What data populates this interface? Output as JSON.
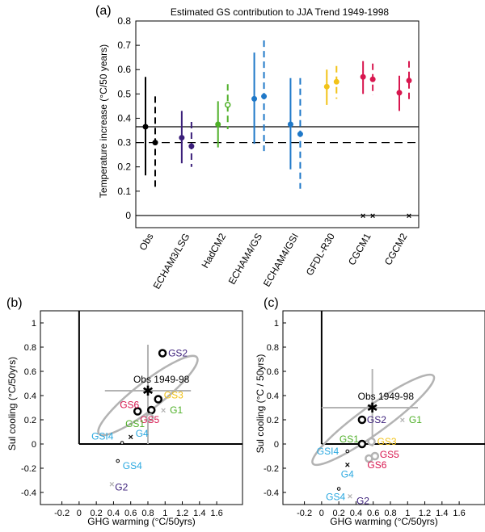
{
  "figure": {
    "panels": [
      "(a)",
      "(b)",
      "(c)"
    ]
  },
  "colors": {
    "obs": "#000000",
    "echam3": "#3b1f7a",
    "hadcm2": "#4fb028",
    "echam4gs": "#1f78c8",
    "echam4gsi": "#1f78c8",
    "gfdl": "#f2c318",
    "cgcm1": "#d8174f",
    "cgcm2": "#d8174f",
    "gs2": "#3b1f7a",
    "gs3": "#f2c318",
    "g1": "#4fb028",
    "gs1": "#4fb028",
    "gs5": "#d8174f",
    "gs6": "#d8174f",
    "gsi4": "#2aa8e0",
    "gs4": "#2aa8e0",
    "g4": "#2aa8e0",
    "g2": "#3b1f7a",
    "ellipse": "#b3b3b3"
  },
  "chart_data": [
    {
      "type": "errorbar",
      "title": "Estimated GS contribution to JJA Trend 1949-1998",
      "ylabel": "Temperature increase (°C/50 years)",
      "ylim": [
        -0.05,
        0.8
      ],
      "yticks": [
        "0",
        "0.1",
        "0.2",
        "0.3",
        "0.4",
        "0.5",
        "0.6",
        "0.7",
        "0.8"
      ],
      "categories": [
        "Obs",
        "ECHAM3/LSG",
        "HadCM2",
        "ECHAM4/GS",
        "ECHAM4/GSI",
        "GFDL-R30",
        "CGCM1",
        "CGCM2"
      ],
      "reference_lines": [
        {
          "value": 0.365,
          "style": "solid"
        },
        {
          "value": 0.3,
          "style": "dashed"
        },
        {
          "value": 0,
          "style": "solid"
        }
      ],
      "series": [
        {
          "category": "Obs",
          "estimate": "solid",
          "value": 0.365,
          "low": 0.165,
          "high": 0.57,
          "marker": "filled"
        },
        {
          "category": "Obs",
          "estimate": "dashed",
          "value": 0.3,
          "low": 0.105,
          "high": 0.49,
          "marker": "filled"
        },
        {
          "category": "ECHAM3/LSG",
          "estimate": "solid",
          "value": 0.32,
          "low": 0.215,
          "high": 0.43,
          "marker": "filled"
        },
        {
          "category": "ECHAM3/LSG",
          "estimate": "dashed",
          "value": 0.285,
          "low": 0.2,
          "high": 0.385,
          "marker": "filled"
        },
        {
          "category": "HadCM2",
          "estimate": "solid",
          "value": 0.375,
          "low": 0.28,
          "high": 0.47,
          "marker": "filled"
        },
        {
          "category": "HadCM2",
          "estimate": "dashed",
          "value": 0.455,
          "low": 0.355,
          "high": 0.54,
          "marker": "open"
        },
        {
          "category": "ECHAM4/GS",
          "estimate": "solid",
          "value": 0.48,
          "low": 0.295,
          "high": 0.67,
          "marker": "filled"
        },
        {
          "category": "ECHAM4/GS",
          "estimate": "dashed",
          "value": 0.49,
          "low": 0.265,
          "high": 0.72,
          "marker": "filled"
        },
        {
          "category": "ECHAM4/GSI",
          "estimate": "solid",
          "value": 0.375,
          "low": 0.19,
          "high": 0.565,
          "marker": "filled"
        },
        {
          "category": "ECHAM4/GSI",
          "estimate": "dashed",
          "value": 0.335,
          "low": 0.11,
          "high": 0.565,
          "marker": "filled"
        },
        {
          "category": "GFDL-R30",
          "estimate": "solid",
          "value": 0.53,
          "low": 0.455,
          "high": 0.6,
          "marker": "filled"
        },
        {
          "category": "GFDL-R30",
          "estimate": "dashed",
          "value": 0.55,
          "low": 0.48,
          "high": 0.615,
          "marker": "filled"
        },
        {
          "category": "CGCM1",
          "estimate": "solid",
          "value": 0.57,
          "low": 0.5,
          "high": 0.635,
          "marker": "filled",
          "zero_marker": true
        },
        {
          "category": "CGCM1",
          "estimate": "dashed",
          "value": 0.56,
          "low": 0.495,
          "high": 0.625,
          "marker": "filled",
          "zero_marker": true
        },
        {
          "category": "CGCM2",
          "estimate": "solid",
          "value": 0.505,
          "low": 0.43,
          "high": 0.575,
          "marker": "filled"
        },
        {
          "category": "CGCM2",
          "estimate": "dashed",
          "value": 0.555,
          "low": 0.475,
          "high": 0.635,
          "marker": "filled",
          "zero_marker": true
        }
      ]
    },
    {
      "type": "scatter",
      "xlabel": "GHG warming (°C/50yrs)",
      "ylabel": "Sul cooling (°C/50yrs)",
      "xlim": [
        -0.45,
        1.9
      ],
      "ylim": [
        -0.5,
        1.1
      ],
      "xticks": [
        "-0.2",
        "0",
        "0.2",
        "0.4",
        "0.6",
        "0.8",
        "1",
        "1.2",
        "1.4",
        "1.6"
      ],
      "yticks": [
        "-0.4",
        "-0.2",
        "0",
        "0.2",
        "0.4",
        "0.6",
        "0.8",
        "1"
      ],
      "observation": {
        "label": "Obs 1949-98",
        "x": 0.8,
        "y": 0.44,
        "x_range": [
          0.3,
          1.3
        ],
        "y_range": [
          0.0,
          0.82
        ]
      },
      "ellipse": {
        "center": [
          0.8,
          0.4
        ],
        "semi_major": 0.6,
        "semi_minor": 0.13,
        "angle_deg": 38
      },
      "points": [
        {
          "label": "GS2",
          "x": 0.97,
          "y": 0.75,
          "marker": "open-bold"
        },
        {
          "label": "GS3",
          "x": 0.92,
          "y": 0.37,
          "marker": "open-bold"
        },
        {
          "label": "GS6",
          "x": 0.68,
          "y": 0.27,
          "marker": "open-bold"
        },
        {
          "label": "GS5",
          "x": 0.84,
          "y": 0.28,
          "marker": "open-bold"
        },
        {
          "label": "G1",
          "x": 0.98,
          "y": 0.28,
          "marker": "cross"
        },
        {
          "label": "GS1",
          "x": 0.82,
          "y": 0.22,
          "marker": "open-light"
        },
        {
          "label": "GSI4",
          "x": 0.5,
          "y": 0.01,
          "marker": "small-open"
        },
        {
          "label": "G4",
          "x": 0.6,
          "y": 0.06,
          "marker": "cross"
        },
        {
          "label": "GS4",
          "x": 0.45,
          "y": -0.14,
          "marker": "small-open"
        },
        {
          "label": "G2",
          "x": 0.38,
          "y": -0.33,
          "marker": "cross"
        }
      ]
    },
    {
      "type": "scatter",
      "xlabel": "GHG warming (°C/50yrs)",
      "ylabel": "Sul cooling (°C / 50yrs)",
      "xlim": [
        -0.45,
        1.9
      ],
      "ylim": [
        -0.5,
        1.1
      ],
      "xticks": [
        "-0.2",
        "0",
        "0.2",
        "0.4",
        "0.6",
        "0.8",
        "1",
        "1.2",
        "1.4",
        "1.6"
      ],
      "yticks": [
        "-0.4",
        "-0.2",
        "0",
        "0.2",
        "0.4",
        "0.6",
        "0.8",
        "1"
      ],
      "observation": {
        "label": "Obs 1949-98",
        "x": 0.59,
        "y": 0.3,
        "x_range": [
          0.0,
          1.12
        ],
        "y_range": [
          -0.02,
          0.62
        ]
      },
      "ellipse": {
        "center": [
          0.6,
          0.2
        ],
        "semi_major": 0.72,
        "semi_minor": 0.13,
        "angle_deg": 36
      },
      "points": [
        {
          "label": "GS2",
          "x": 0.47,
          "y": 0.2,
          "marker": "open-bold"
        },
        {
          "label": "G1",
          "x": 0.94,
          "y": 0.2,
          "marker": "cross"
        },
        {
          "label": "GS1",
          "x": 0.47,
          "y": 0.0,
          "marker": "open-bold"
        },
        {
          "label": "GS3",
          "x": 0.58,
          "y": 0.02,
          "marker": "open-light"
        },
        {
          "label": "GSI4",
          "x": 0.3,
          "y": -0.06,
          "marker": "small-open"
        },
        {
          "label": "GS5",
          "x": 0.62,
          "y": -0.1,
          "marker": "open-light"
        },
        {
          "label": "GS6",
          "x": 0.55,
          "y": -0.12,
          "marker": "open-light"
        },
        {
          "label": "G4",
          "x": 0.3,
          "y": -0.17,
          "marker": "cross"
        },
        {
          "label": "GS4",
          "x": 0.2,
          "y": -0.37,
          "marker": "small-open"
        },
        {
          "label": "G2",
          "x": 0.33,
          "y": -0.43,
          "marker": "cross"
        }
      ]
    }
  ]
}
